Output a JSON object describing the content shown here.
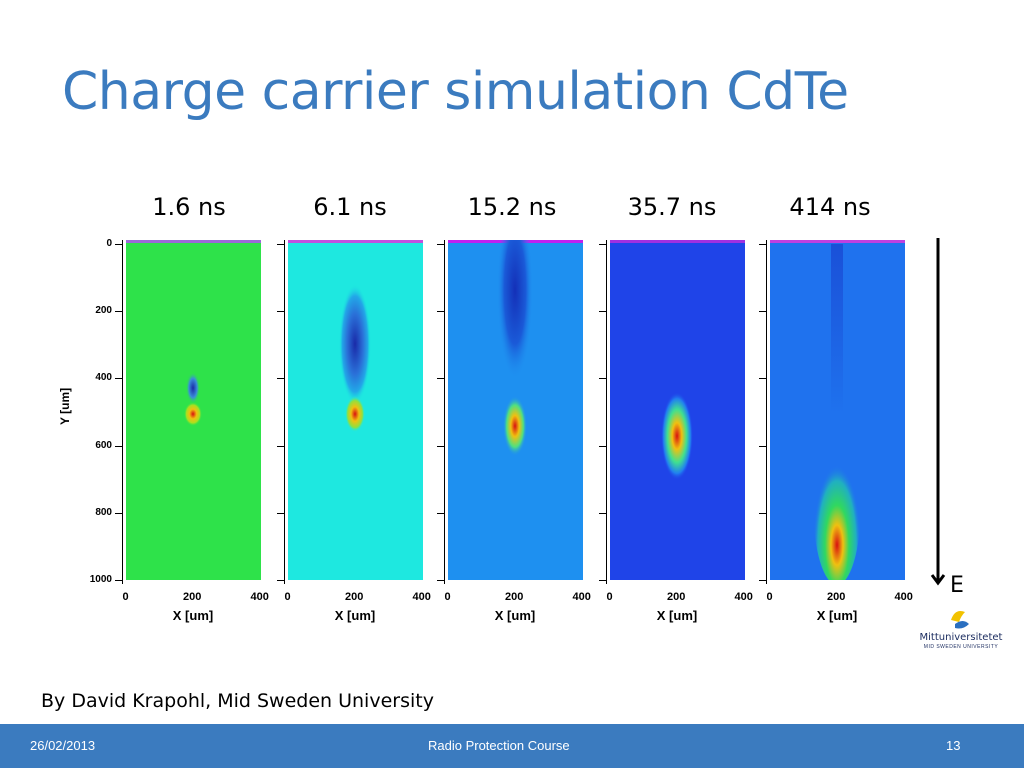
{
  "slide": {
    "title": "Charge carrier simulation CdTe",
    "time_labels": [
      "1.6 ns",
      "6.1 ns",
      "15.2 ns",
      "35.7 ns",
      "414 ns"
    ],
    "y_axis_title": "Y [um]",
    "y_ticks": [
      "0",
      "200",
      "400",
      "600",
      "800",
      "1000"
    ],
    "x_ticks": [
      "0",
      "200",
      "400"
    ],
    "x_axis_title": "X [um]",
    "field_label": "E",
    "credit": "By David Krapohl, Mid Sweden University",
    "logo": {
      "name": "Mittuniversitetet",
      "subtitle": "MID SWEDEN UNIVERSITY",
      "icon": "mittuniversitetet-logo-icon"
    }
  },
  "panel_colors": [
    "#2ee24a",
    "#1ee8e0",
    "#1e90f0",
    "#1f44e8",
    "#1f72ee"
  ],
  "footer": {
    "date": "26/02/2013",
    "course": "Radio Protection Course",
    "page": "13",
    "background": "#3b7bbf"
  }
}
